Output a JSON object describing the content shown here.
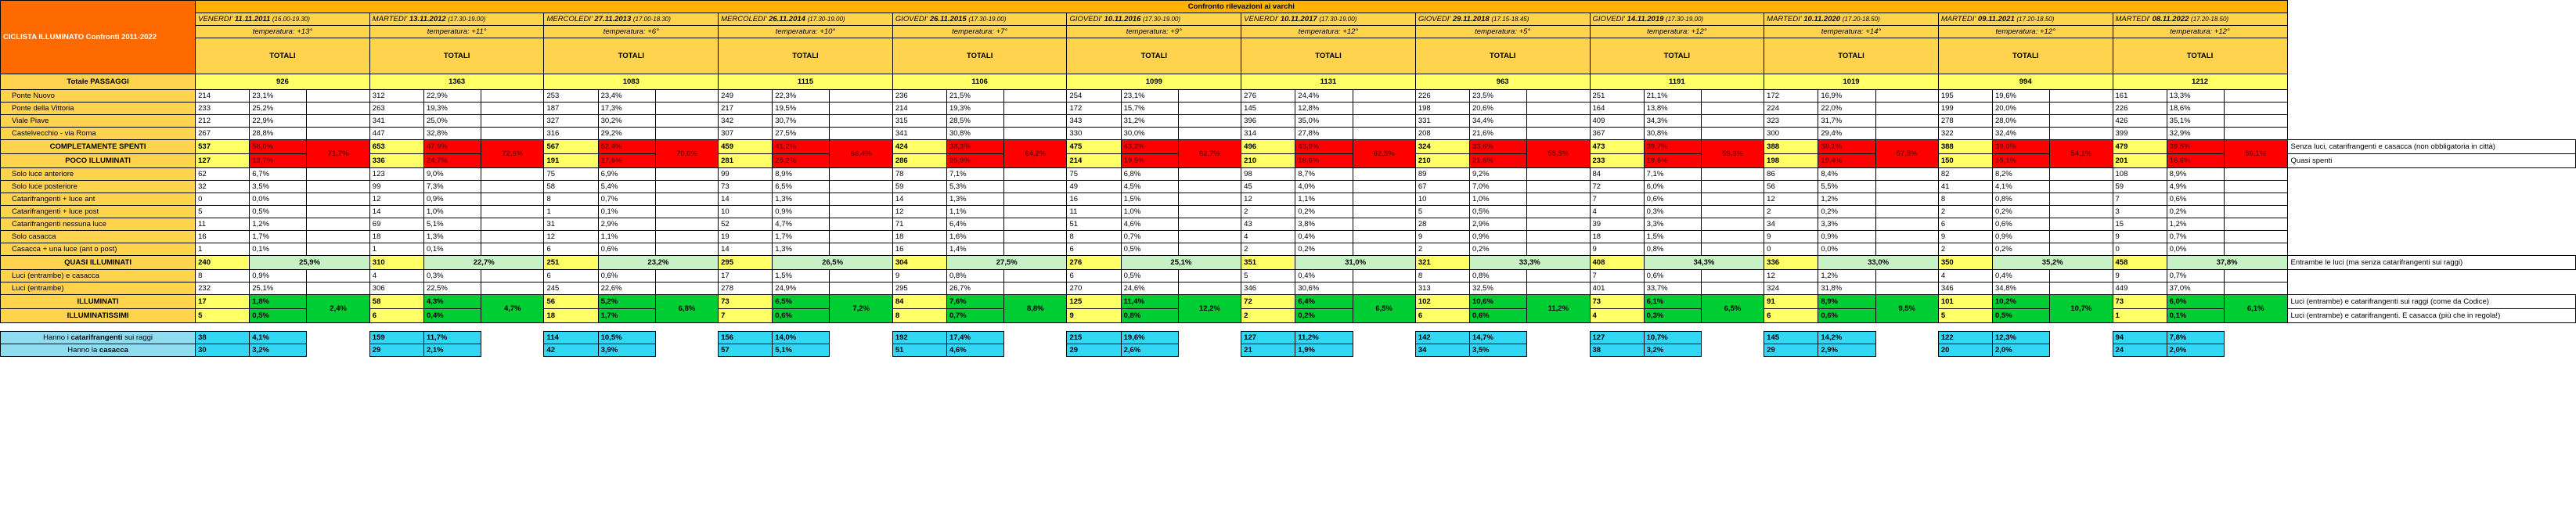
{
  "title": "CICLISTA ILLUMINATO Confronti 2011-2022",
  "header": "Confronto rilevazioni ai varchi",
  "totals_label": "TOTALI",
  "sessions": [
    {
      "day": "VENERDI'",
      "date": "11.11.2011",
      "time": "(16.00-19.30)",
      "temp": "temperatura: +13°"
    },
    {
      "day": "MARTEDI'",
      "date": "13.11.2012",
      "time": "(17.30-19.00)",
      "temp": "temperatura: +11°"
    },
    {
      "day": "MERCOLEDI'",
      "date": "27.11.2013",
      "time": "(17.00-18.30)",
      "temp": "temperatura: +6°"
    },
    {
      "day": "MERCOLEDI'",
      "date": "26.11.2014",
      "time": "(17.30-19.00)",
      "temp": "temperatura: +10°"
    },
    {
      "day": "GIOVEDI'",
      "date": "26.11.2015",
      "time": "(17.30-19.00)",
      "temp": "temperatura: +7°"
    },
    {
      "day": "GIOVEDI'",
      "date": "10.11.2016",
      "time": "(17.30-19.00)",
      "temp": "temperatura: +9°"
    },
    {
      "day": "VENERDI'",
      "date": "10.11.2017",
      "time": "(17.30-19.00)",
      "temp": "temperatura: +12°"
    },
    {
      "day": "GIOVEDI'",
      "date": "29.11.2018",
      "time": "(17.15-18.45)",
      "temp": "temperatura: +5°"
    },
    {
      "day": "GIOVEDI'",
      "date": "14.11.2019",
      "time": "(17.30-19.00)",
      "temp": "temperatura: +12°"
    },
    {
      "day": "MARTEDI'",
      "date": "10.11.2020",
      "time": "(17.20-18.50)",
      "temp": "temperatura: +14°"
    },
    {
      "day": "MARTEDI'",
      "date": "09.11.2021",
      "time": "(17.20-18.50)",
      "temp": "temperatura: +12°"
    },
    {
      "day": "MARTEDI'",
      "date": "08.11.2022",
      "time": "(17.20-18.50)",
      "temp": "temperatura: +12°"
    }
  ],
  "passaggi": {
    "label": "Totale PASSAGGI",
    "values": [
      "926",
      "1363",
      "1083",
      "1115",
      "1106",
      "1099",
      "1131",
      "963",
      "1191",
      "1019",
      "994",
      "1212"
    ]
  },
  "ponti": [
    {
      "label": "Ponte Nuovo",
      "cells": [
        [
          "214",
          "23,1%"
        ],
        [
          "312",
          "22,9%"
        ],
        [
          "253",
          "23,4%"
        ],
        [
          "249",
          "22,3%"
        ],
        [
          "236",
          "21,5%"
        ],
        [
          "254",
          "23,1%"
        ],
        [
          "276",
          "24,4%"
        ],
        [
          "226",
          "23,5%"
        ],
        [
          "251",
          "21,1%"
        ],
        [
          "172",
          "16,9%"
        ],
        [
          "195",
          "19,6%"
        ],
        [
          "161",
          "13,3%"
        ]
      ]
    },
    {
      "label": "Ponte della Vittoria",
      "cells": [
        [
          "233",
          "25,2%"
        ],
        [
          "263",
          "19,3%"
        ],
        [
          "187",
          "17,3%"
        ],
        [
          "217",
          "19,5%"
        ],
        [
          "214",
          "19,3%"
        ],
        [
          "172",
          "15,7%"
        ],
        [
          "145",
          "12,8%"
        ],
        [
          "198",
          "20,6%"
        ],
        [
          "164",
          "13,8%"
        ],
        [
          "224",
          "22,0%"
        ],
        [
          "199",
          "20,0%"
        ],
        [
          "226",
          "18,6%"
        ]
      ]
    },
    {
      "label": "Viale Piave",
      "cells": [
        [
          "212",
          "22,9%"
        ],
        [
          "341",
          "25,0%"
        ],
        [
          "327",
          "30,2%"
        ],
        [
          "342",
          "30,7%"
        ],
        [
          "315",
          "28,5%"
        ],
        [
          "343",
          "31,2%"
        ],
        [
          "396",
          "35,0%"
        ],
        [
          "331",
          "34,4%"
        ],
        [
          "409",
          "34,3%"
        ],
        [
          "323",
          "31,7%"
        ],
        [
          "278",
          "28,0%"
        ],
        [
          "426",
          "35,1%"
        ]
      ]
    },
    {
      "label": "Castelvecchio - via Roma",
      "cells": [
        [
          "267",
          "28,8%"
        ],
        [
          "447",
          "32,8%"
        ],
        [
          "316",
          "29,2%"
        ],
        [
          "307",
          "27,5%"
        ],
        [
          "341",
          "30,8%"
        ],
        [
          "330",
          "30,0%"
        ],
        [
          "314",
          "27,8%"
        ],
        [
          "208",
          "21,6%"
        ],
        [
          "367",
          "30,8%"
        ],
        [
          "300",
          "29,4%"
        ],
        [
          "322",
          "32,4%"
        ],
        [
          "399",
          "32,9%"
        ]
      ]
    }
  ],
  "spenti": {
    "label": "COMPLETAMENTE SPENTI",
    "note": "Senza luci, catarifrangenti e casacca (non obbligatoria in città)",
    "cells": [
      [
        "537",
        "58,0%"
      ],
      [
        "653",
        "47,9%"
      ],
      [
        "567",
        "52,4%"
      ],
      [
        "459",
        "41,2%"
      ],
      [
        "424",
        "38,3%"
      ],
      [
        "475",
        "43,2%"
      ],
      [
        "496",
        "43,9%"
      ],
      [
        "324",
        "33,6%"
      ],
      [
        "473",
        "39,7%"
      ],
      [
        "388",
        "38,1%"
      ],
      [
        "388",
        "39,0%"
      ],
      [
        "479",
        "39,5%"
      ]
    ],
    "combined": [
      "71,7%",
      "72,6%",
      "70,0%",
      "66,4%",
      "64,2%",
      "62,7%",
      "62,5%",
      "55,5%",
      "59,3%",
      "57,5%",
      "54,1%",
      "56,1%"
    ]
  },
  "poco": {
    "label": "POCO ILLUMINATI",
    "note": "Quasi spenti",
    "cells": [
      [
        "127",
        "13,7%"
      ],
      [
        "336",
        "24,7%"
      ],
      [
        "191",
        "17,6%"
      ],
      [
        "281",
        "25,2%"
      ],
      [
        "286",
        "25,9%"
      ],
      [
        "214",
        "19,5%"
      ],
      [
        "210",
        "18,6%"
      ],
      [
        "210",
        "21,8%"
      ],
      [
        "233",
        "19,6%"
      ],
      [
        "198",
        "19,4%"
      ],
      [
        "150",
        "15,1%"
      ],
      [
        "201",
        "16,6%"
      ]
    ]
  },
  "poco_rows": [
    {
      "label": "Solo luce anteriore",
      "cells": [
        [
          "62",
          "6,7%"
        ],
        [
          "123",
          "9,0%"
        ],
        [
          "75",
          "6,9%"
        ],
        [
          "99",
          "8,9%"
        ],
        [
          "78",
          "7,1%"
        ],
        [
          "75",
          "6,8%"
        ],
        [
          "98",
          "8,7%"
        ],
        [
          "89",
          "9,2%"
        ],
        [
          "84",
          "7,1%"
        ],
        [
          "86",
          "8,4%"
        ],
        [
          "82",
          "8,2%"
        ],
        [
          "108",
          "8,9%"
        ]
      ]
    },
    {
      "label": "Solo luce posteriore",
      "cells": [
        [
          "32",
          "3,5%"
        ],
        [
          "99",
          "7,3%"
        ],
        [
          "58",
          "5,4%"
        ],
        [
          "73",
          "6,5%"
        ],
        [
          "59",
          "5,3%"
        ],
        [
          "49",
          "4,5%"
        ],
        [
          "45",
          "4,0%"
        ],
        [
          "67",
          "7,0%"
        ],
        [
          "72",
          "6,0%"
        ],
        [
          "56",
          "5,5%"
        ],
        [
          "41",
          "4,1%"
        ],
        [
          "59",
          "4,9%"
        ]
      ]
    },
    {
      "label": "Catarifrangenti + luce ant",
      "cells": [
        [
          "0",
          "0,0%"
        ],
        [
          "12",
          "0,9%"
        ],
        [
          "8",
          "0,7%"
        ],
        [
          "14",
          "1,3%"
        ],
        [
          "14",
          "1,3%"
        ],
        [
          "16",
          "1,5%"
        ],
        [
          "12",
          "1,1%"
        ],
        [
          "10",
          "1,0%"
        ],
        [
          "7",
          "0,6%"
        ],
        [
          "12",
          "1,2%"
        ],
        [
          "8",
          "0,8%"
        ],
        [
          "7",
          "0,6%"
        ]
      ]
    },
    {
      "label": "Catarifrangenti + luce post",
      "cells": [
        [
          "5",
          "0,5%"
        ],
        [
          "14",
          "1,0%"
        ],
        [
          "1",
          "0,1%"
        ],
        [
          "10",
          "0,9%"
        ],
        [
          "12",
          "1,1%"
        ],
        [
          "11",
          "1,0%"
        ],
        [
          "2",
          "0,2%"
        ],
        [
          "5",
          "0,5%"
        ],
        [
          "4",
          "0,3%"
        ],
        [
          "2",
          "0,2%"
        ],
        [
          "2",
          "0,2%"
        ],
        [
          "3",
          "0,2%"
        ]
      ]
    },
    {
      "label": "Catarifrangenti nessuna luce",
      "cells": [
        [
          "11",
          "1,2%"
        ],
        [
          "69",
          "5,1%"
        ],
        [
          "31",
          "2,9%"
        ],
        [
          "52",
          "4,7%"
        ],
        [
          "71",
          "6,4%"
        ],
        [
          "51",
          "4,6%"
        ],
        [
          "43",
          "3,8%"
        ],
        [
          "28",
          "2,9%"
        ],
        [
          "39",
          "3,3%"
        ],
        [
          "34",
          "3,3%"
        ],
        [
          "6",
          "0,6%"
        ],
        [
          "15",
          "1,2%"
        ]
      ]
    },
    {
      "label": "Solo casacca",
      "cells": [
        [
          "16",
          "1,7%"
        ],
        [
          "18",
          "1,3%"
        ],
        [
          "12",
          "1,1%"
        ],
        [
          "19",
          "1,7%"
        ],
        [
          "18",
          "1,6%"
        ],
        [
          "8",
          "0,7%"
        ],
        [
          "4",
          "0,4%"
        ],
        [
          "9",
          "0,9%"
        ],
        [
          "18",
          "1,5%"
        ],
        [
          "9",
          "0,9%"
        ],
        [
          "9",
          "0,9%"
        ],
        [
          "9",
          "0,7%"
        ]
      ]
    },
    {
      "label": "Casacca + una luce (ant o post)",
      "cells": [
        [
          "1",
          "0,1%"
        ],
        [
          "1",
          "0,1%"
        ],
        [
          "6",
          "0,6%"
        ],
        [
          "14",
          "1,3%"
        ],
        [
          "16",
          "1,4%"
        ],
        [
          "6",
          "0,5%"
        ],
        [
          "2",
          "0,2%"
        ],
        [
          "2",
          "0,2%"
        ],
        [
          "9",
          "0,8%"
        ],
        [
          "0",
          "0,0%"
        ],
        [
          "2",
          "0,2%"
        ],
        [
          "0",
          "0,0%"
        ]
      ]
    }
  ],
  "quasi": {
    "label": "QUASI ILLUMINATI",
    "note": "Entrambe le luci (ma senza catarifrangenti sui raggi)",
    "cells": [
      [
        "240",
        "25,9%"
      ],
      [
        "310",
        "22,7%"
      ],
      [
        "251",
        "23,2%"
      ],
      [
        "295",
        "26,5%"
      ],
      [
        "304",
        "27,5%"
      ],
      [
        "276",
        "25,1%"
      ],
      [
        "351",
        "31,0%"
      ],
      [
        "321",
        "33,3%"
      ],
      [
        "408",
        "34,3%"
      ],
      [
        "336",
        "33,0%"
      ],
      [
        "350",
        "35,2%"
      ],
      [
        "458",
        "37,8%"
      ]
    ]
  },
  "quasi_rows": [
    {
      "label": "Luci (entrambe) e casacca",
      "cells": [
        [
          "8",
          "0,9%"
        ],
        [
          "4",
          "0,3%"
        ],
        [
          "6",
          "0,6%"
        ],
        [
          "17",
          "1,5%"
        ],
        [
          "9",
          "0,8%"
        ],
        [
          "6",
          "0,5%"
        ],
        [
          "5",
          "0,4%"
        ],
        [
          "8",
          "0,8%"
        ],
        [
          "7",
          "0,6%"
        ],
        [
          "12",
          "1,2%"
        ],
        [
          "4",
          "0,4%"
        ],
        [
          "9",
          "0,7%"
        ]
      ]
    },
    {
      "label": "Luci (entrambe)",
      "cells": [
        [
          "232",
          "25,1%"
        ],
        [
          "306",
          "22,5%"
        ],
        [
          "245",
          "22,6%"
        ],
        [
          "278",
          "24,9%"
        ],
        [
          "295",
          "26,7%"
        ],
        [
          "270",
          "24,6%"
        ],
        [
          "346",
          "30,6%"
        ],
        [
          "313",
          "32,5%"
        ],
        [
          "401",
          "33,7%"
        ],
        [
          "324",
          "31,8%"
        ],
        [
          "346",
          "34,8%"
        ],
        [
          "449",
          "37,0%"
        ]
      ]
    }
  ],
  "illum": {
    "label": "ILLUMINATI",
    "note": "Luci (entrambe) e catarifrangenti sui raggi (come da Codice)",
    "cells": [
      [
        "17",
        "1,8%"
      ],
      [
        "58",
        "4,3%"
      ],
      [
        "56",
        "5,2%"
      ],
      [
        "73",
        "6,5%"
      ],
      [
        "84",
        "7,6%"
      ],
      [
        "125",
        "11,4%"
      ],
      [
        "72",
        "6,4%"
      ],
      [
        "102",
        "10,6%"
      ],
      [
        "73",
        "6,1%"
      ],
      [
        "91",
        "8,9%"
      ],
      [
        "101",
        "10,2%"
      ],
      [
        "73",
        "6,0%"
      ]
    ],
    "combined": [
      "2,4%",
      "4,7%",
      "6,8%",
      "7,2%",
      "8,8%",
      "12,2%",
      "6,5%",
      "11,2%",
      "6,5%",
      "9,5%",
      "10,7%",
      "6,1%"
    ]
  },
  "illumissimi": {
    "label": "ILLUMINATISSIMI",
    "note": "Luci (entrambe) e catarifrangenti. E casacca (più che in regola!)",
    "cells": [
      [
        "5",
        "0,5%"
      ],
      [
        "6",
        "0,4%"
      ],
      [
        "18",
        "1,7%"
      ],
      [
        "7",
        "0,6%"
      ],
      [
        "8",
        "0,7%"
      ],
      [
        "9",
        "0,8%"
      ],
      [
        "2",
        "0,2%"
      ],
      [
        "6",
        "0,6%"
      ],
      [
        "4",
        "0,3%"
      ],
      [
        "6",
        "0,6%"
      ],
      [
        "5",
        "0,5%"
      ],
      [
        "1",
        "0,1%"
      ]
    ]
  },
  "extra": [
    {
      "label_pre": "Hanno i ",
      "label_bold": "catarifrangenti",
      "label_post": " sui raggi",
      "cells": [
        [
          "38",
          "4,1%"
        ],
        [
          "159",
          "11,7%"
        ],
        [
          "114",
          "10,5%"
        ],
        [
          "156",
          "14,0%"
        ],
        [
          "192",
          "17,4%"
        ],
        [
          "215",
          "19,6%"
        ],
        [
          "127",
          "11,2%"
        ],
        [
          "142",
          "14,7%"
        ],
        [
          "127",
          "10,7%"
        ],
        [
          "145",
          "14,2%"
        ],
        [
          "122",
          "12,3%"
        ],
        [
          "94",
          "7,8%"
        ]
      ]
    },
    {
      "label_pre": "Hanno la ",
      "label_bold": "casacca",
      "label_post": "",
      "cells": [
        [
          "30",
          "3,2%"
        ],
        [
          "29",
          "2,1%"
        ],
        [
          "42",
          "3,9%"
        ],
        [
          "57",
          "5,1%"
        ],
        [
          "51",
          "4,6%"
        ],
        [
          "29",
          "2,6%"
        ],
        [
          "21",
          "1,9%"
        ],
        [
          "34",
          "3,5%"
        ],
        [
          "38",
          "3,2%"
        ],
        [
          "29",
          "2,9%"
        ],
        [
          "20",
          "2,0%"
        ],
        [
          "24",
          "2,0%"
        ]
      ]
    }
  ],
  "colors": {
    "orange": "#ff6a00",
    "header": "#ffb300",
    "label": "#ffd34d",
    "yellow": "#ffff66",
    "red": "#ff0000",
    "green": "#00cc33",
    "light_green": "#c6f2c6",
    "blue": "#33d6f5"
  }
}
